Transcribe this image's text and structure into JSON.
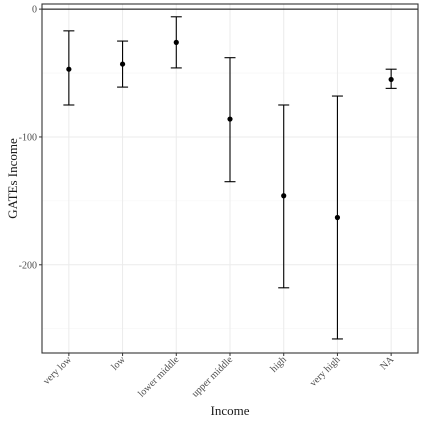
{
  "chart_data": {
    "type": "scatter",
    "subtype": "point-with-errorbars",
    "title": "",
    "xlabel": "Income",
    "ylabel": "GATEs Income",
    "categories": [
      "very low",
      "low",
      "lower middle",
      "upper middle",
      "high",
      "very high",
      "NA"
    ],
    "values": [
      -47,
      -43,
      -26,
      -86,
      -146,
      -163,
      -55
    ],
    "lower": [
      -75,
      -61,
      -46,
      -135,
      -218,
      -258,
      -62
    ],
    "upper": [
      -17,
      -25,
      -6,
      -38,
      -75,
      -68,
      -47
    ],
    "ylim": [
      -269,
      4
    ],
    "yticks": [
      0,
      -100,
      -200
    ],
    "ytick_labels": [
      "0",
      "-100",
      "-200"
    ],
    "reference_line_y": 0,
    "grid": true,
    "legend": "none",
    "colors": {
      "points": "#000000",
      "errorbars": "#000000",
      "grid": "#ebebeb"
    }
  }
}
